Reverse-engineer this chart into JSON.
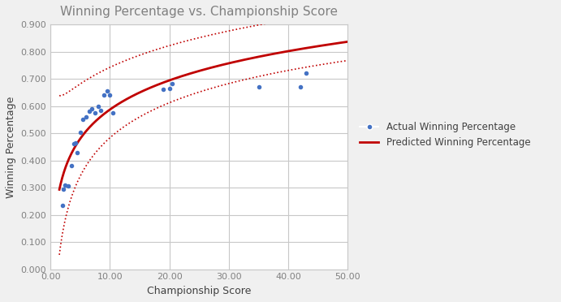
{
  "title": "Winning Percentage vs. Championship Score",
  "xlabel": "Championship Score",
  "ylabel": "Winning Percentage",
  "xlim": [
    0,
    50
  ],
  "ylim": [
    0.0,
    0.9
  ],
  "xticks": [
    0.0,
    10.0,
    20.0,
    30.0,
    40.0,
    50.0
  ],
  "yticks": [
    0.0,
    0.1,
    0.2,
    0.3,
    0.4,
    0.5,
    0.6,
    0.7,
    0.8,
    0.9
  ],
  "scatter_x": [
    2.0,
    2.2,
    2.5,
    3.0,
    3.5,
    4.0,
    4.2,
    4.5,
    5.0,
    5.5,
    6.0,
    6.5,
    7.0,
    7.5,
    8.0,
    8.5,
    9.0,
    9.5,
    10.0,
    10.5,
    19.0,
    20.0,
    20.5,
    35.0,
    42.0,
    43.0
  ],
  "scatter_y": [
    0.236,
    0.295,
    0.31,
    0.307,
    0.38,
    0.46,
    0.465,
    0.43,
    0.502,
    0.55,
    0.56,
    0.58,
    0.59,
    0.575,
    0.6,
    0.585,
    0.64,
    0.655,
    0.64,
    0.575,
    0.66,
    0.665,
    0.682,
    0.67,
    0.67,
    0.72
  ],
  "scatter_color": "#4472C4",
  "scatter_marker": ".",
  "scatter_size": 35,
  "curve_color": "#C00000",
  "ci_color": "#C00000",
  "background_color": "#F0F0F0",
  "plot_bg_color": "#FFFFFF",
  "border_color": "#C8C8C8",
  "title_color": "#808080",
  "label_color": "#404040",
  "tick_color": "#808080",
  "grid_color": "#C8C8C8",
  "legend_dot_label": "Actual Winning Percentage",
  "legend_line_label": "Predicted Winning Percentage",
  "log_a": 0.23,
  "log_b": 0.155,
  "ci_base": 0.13,
  "ci_slope": 0.008
}
